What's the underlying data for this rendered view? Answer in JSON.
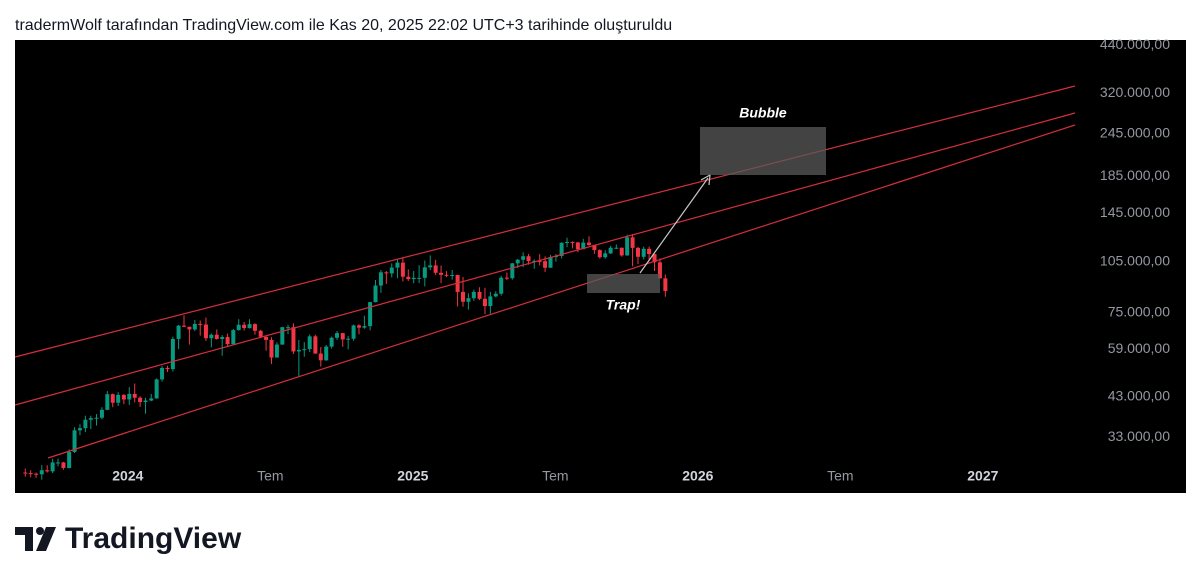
{
  "header": "tradermWolf tarafından TradingView.com ile Kas 20, 2025 22:02 UTC+3 tarihinde oluşturuldu",
  "brand": "TradingView",
  "chart_data": {
    "type": "candlestick",
    "log_scale": true,
    "up_color": "#089981",
    "down_color": "#f23645",
    "annotations": [
      "Bubble",
      "Trap!"
    ],
    "xlim": [
      2023.604,
      2027.362
    ],
    "xticks": [
      2024,
      {
        "value": 2024.5,
        "label": "Tem"
      },
      2025,
      {
        "value": 2025.5,
        "label": "Tem"
      },
      2026,
      {
        "value": 2026.5,
        "label": "Tem"
      },
      2027
    ],
    "ylim": [
      22800,
      455000
    ],
    "yticks": [
      {
        "value": 440000,
        "label": "440.000,00"
      },
      {
        "value": 320000,
        "label": "320.000,00"
      },
      {
        "value": 245000,
        "label": "245.000,00"
      },
      {
        "value": 185000,
        "label": "185.000,00"
      },
      {
        "value": 145000,
        "label": "145.000,00"
      },
      {
        "value": 105000,
        "label": "105.000,00"
      },
      {
        "value": 75000,
        "label": "75.000,00"
      },
      {
        "value": 59000,
        "label": "59.000,00"
      },
      {
        "value": 43000,
        "label": "43.000,00"
      },
      {
        "value": 33000,
        "label": "33.000,00"
      }
    ],
    "x": [
      2023.64,
      2023.659,
      2023.678,
      2023.698,
      2023.717,
      2023.736,
      2023.755,
      2023.774,
      2023.794,
      2023.813,
      2023.832,
      2023.851,
      2023.87,
      2023.89,
      2023.909,
      2023.928,
      2023.947,
      2023.966,
      2023.986,
      2024.005,
      2024.024,
      2024.043,
      2024.062,
      2024.082,
      2024.101,
      2024.12,
      2024.139,
      2024.158,
      2024.178,
      2024.197,
      2024.216,
      2024.235,
      2024.254,
      2024.274,
      2024.293,
      2024.312,
      2024.331,
      2024.35,
      2024.37,
      2024.389,
      2024.408,
      2024.427,
      2024.446,
      2024.466,
      2024.485,
      2024.504,
      2024.523,
      2024.542,
      2024.562,
      2024.581,
      2024.6,
      2024.619,
      2024.638,
      2024.658,
      2024.677,
      2024.696,
      2024.715,
      2024.734,
      2024.754,
      2024.773,
      2024.792,
      2024.811,
      2024.83,
      2024.85,
      2024.869,
      2024.888,
      2024.907,
      2024.926,
      2024.946,
      2024.965,
      2024.984,
      2025.003,
      2025.022,
      2025.042,
      2025.061,
      2025.08,
      2025.099,
      2025.118,
      2025.138,
      2025.157,
      2025.176,
      2025.195,
      2025.214,
      2025.234,
      2025.253,
      2025.272,
      2025.291,
      2025.31,
      2025.33,
      2025.349,
      2025.368,
      2025.387,
      2025.406,
      2025.426,
      2025.445,
      2025.464,
      2025.483,
      2025.502,
      2025.522,
      2025.541,
      2025.56,
      2025.579,
      2025.598,
      2025.618,
      2025.637,
      2025.656,
      2025.675,
      2025.694,
      2025.714,
      2025.733,
      2025.752,
      2025.771,
      2025.79,
      2025.81,
      2025.829,
      2025.848,
      2025.867,
      2025.886
    ],
    "open": [
      26100,
      26000,
      25900,
      25800,
      26500,
      26300,
      27900,
      27900,
      26900,
      29900,
      34500,
      35000,
      37000,
      37400,
      37500,
      39500,
      43800,
      41400,
      43600,
      42300,
      43900,
      42800,
      41600,
      42000,
      42600,
      48300,
      52100,
      51700,
      63100,
      68900,
      68400,
      67200,
      69700,
      69400,
      63400,
      64900,
      63100,
      63900,
      61000,
      66900,
      69300,
      67800,
      69600,
      66600,
      64000,
      62700,
      55800,
      60800,
      68200,
      68200,
      58100,
      58700,
      59000,
      64200,
      57300,
      54800,
      60000,
      63600,
      65600,
      62900,
      63200,
      69000,
      68000,
      68700,
      80500,
      89800,
      98000,
      97300,
      101100,
      104500,
      95200,
      93700,
      94500,
      94500,
      101300,
      102600,
      97700,
      96400,
      96100,
      96300,
      86100,
      80700,
      82600,
      86100,
      82300,
      78400,
      83600,
      85100,
      94600,
      94300,
      104000,
      106500,
      109000,
      105600,
      105700,
      105500,
      101000,
      108400,
      109200,
      119100,
      119800,
      119400,
      114200,
      119300,
      117400,
      113500,
      108300,
      111100,
      115300,
      115300,
      109600,
      123500,
      115200,
      108600,
      114500,
      110600,
      104700,
      94200
    ],
    "high": [
      26800,
      26500,
      26100,
      27400,
      27400,
      28600,
      28600,
      28000,
      30400,
      35200,
      35900,
      38000,
      38000,
      38400,
      40200,
      44700,
      44000,
      44400,
      43800,
      45900,
      47000,
      43200,
      42800,
      43900,
      48600,
      52800,
      52900,
      64000,
      69200,
      73800,
      68400,
      71500,
      71300,
      72700,
      65400,
      67200,
      64700,
      65400,
      67400,
      71900,
      70600,
      71900,
      70000,
      67000,
      64000,
      63800,
      61700,
      68400,
      69300,
      70000,
      62700,
      61800,
      65000,
      64900,
      59800,
      60600,
      64100,
      66500,
      65600,
      64400,
      69400,
      69500,
      73600,
      80600,
      93200,
      99500,
      98800,
      104000,
      106500,
      108300,
      99900,
      98900,
      102700,
      106000,
      109600,
      106500,
      102500,
      98800,
      99500,
      96500,
      95000,
      85300,
      87400,
      88800,
      88500,
      86100,
      86500,
      95800,
      97900,
      104300,
      107100,
      111900,
      110700,
      106800,
      110500,
      108900,
      110000,
      110500,
      119500,
      123200,
      120200,
      119900,
      122300,
      124400,
      117500,
      114200,
      113400,
      116700,
      117900,
      115500,
      125700,
      126200,
      115900,
      116100,
      116200,
      110800,
      107400,
      96600
    ],
    "low": [
      25400,
      25300,
      25200,
      24900,
      26100,
      26000,
      27200,
      26600,
      26800,
      29700,
      33400,
      34100,
      34800,
      35600,
      37100,
      39400,
      40200,
      40500,
      41000,
      40800,
      41500,
      40300,
      38500,
      41800,
      42500,
      47600,
      50700,
      50900,
      59000,
      68200,
      60800,
      66500,
      64500,
      62300,
      59700,
      62800,
      56500,
      60200,
      60800,
      66700,
      66700,
      67600,
      64900,
      63400,
      58400,
      53500,
      56500,
      60700,
      65100,
      57100,
      49100,
      56100,
      57900,
      57200,
      52600,
      54600,
      59200,
      62700,
      59900,
      58900,
      62400,
      65100,
      67500,
      66800,
      80400,
      85600,
      90800,
      94700,
      94300,
      92300,
      92600,
      91200,
      91300,
      89300,
      99500,
      96200,
      91200,
      94900,
      93400,
      78200,
      78100,
      76600,
      81200,
      81600,
      74400,
      74500,
      83100,
      84000,
      93200,
      93400,
      100800,
      101400,
      103100,
      100400,
      102600,
      98200,
      100900,
      105200,
      107500,
      115700,
      114800,
      112000,
      114200,
      116800,
      110700,
      107300,
      107200,
      110600,
      114300,
      108700,
      109300,
      102000,
      103500,
      106700,
      106300,
      98900,
      94000,
      83400
    ],
    "close": [
      26000,
      25900,
      25800,
      26500,
      26300,
      27900,
      27900,
      26900,
      29900,
      34500,
      35000,
      37000,
      37400,
      37500,
      39500,
      43800,
      41400,
      43600,
      42300,
      43900,
      42800,
      41600,
      42000,
      42600,
      48300,
      52100,
      51700,
      63100,
      68900,
      68400,
      67200,
      69700,
      69400,
      63400,
      64900,
      63100,
      63900,
      61000,
      66900,
      69300,
      67800,
      69600,
      66600,
      64000,
      62700,
      55800,
      60800,
      68200,
      68200,
      58100,
      58700,
      59000,
      64200,
      57300,
      54800,
      60000,
      63600,
      65600,
      62900,
      63200,
      69000,
      68000,
      68700,
      80500,
      89800,
      98000,
      97300,
      101100,
      104500,
      95200,
      93700,
      94500,
      94500,
      101300,
      102600,
      97700,
      96400,
      96100,
      96300,
      86100,
      80700,
      82600,
      86100,
      82300,
      78400,
      83600,
      85100,
      94600,
      94300,
      104000,
      106500,
      109000,
      105600,
      105700,
      105500,
      101000,
      108400,
      109200,
      119100,
      119800,
      119400,
      114200,
      119300,
      117400,
      113500,
      108300,
      111100,
      115300,
      115300,
      109600,
      123500,
      115200,
      108600,
      114500,
      110600,
      104700,
      94200,
      86600
    ]
  }
}
